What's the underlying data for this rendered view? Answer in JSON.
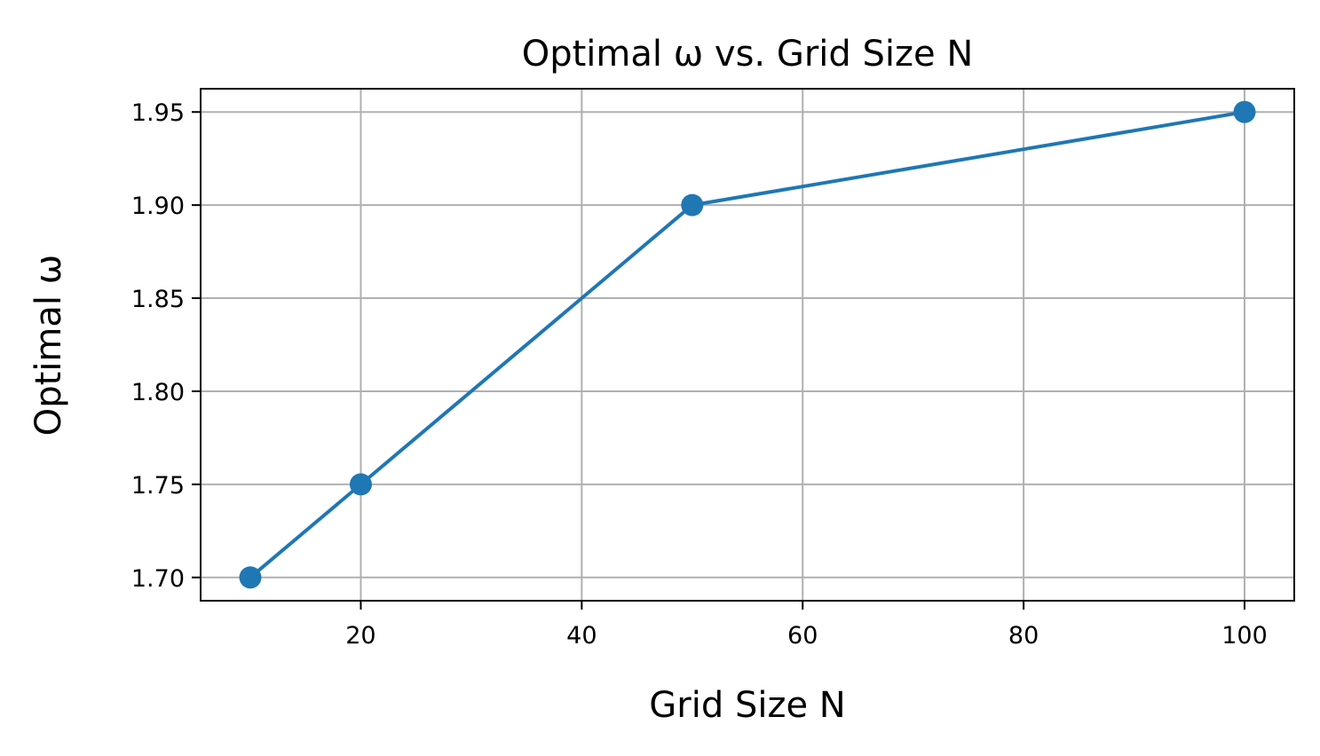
{
  "chart_data": {
    "type": "line",
    "title": "Optimal ω vs. Grid Size N",
    "xlabel": "Grid Size N",
    "ylabel": "Optimal ω",
    "xlim": [
      5.5,
      104.5
    ],
    "ylim": [
      1.6875,
      1.9625
    ],
    "xticks": [
      20,
      40,
      60,
      80,
      100
    ],
    "xtick_labels": [
      "20",
      "40",
      "60",
      "80",
      "100"
    ],
    "yticks": [
      1.7,
      1.75,
      1.8,
      1.85,
      1.9,
      1.95
    ],
    "ytick_labels": [
      "1.70",
      "1.75",
      "1.80",
      "1.85",
      "1.90",
      "1.95"
    ],
    "grid": true,
    "series": [
      {
        "x": [
          10,
          20,
          50,
          100
        ],
        "y": [
          1.7,
          1.75,
          1.9,
          1.95
        ],
        "color": "#1f77b4",
        "marker": "circle"
      }
    ]
  }
}
